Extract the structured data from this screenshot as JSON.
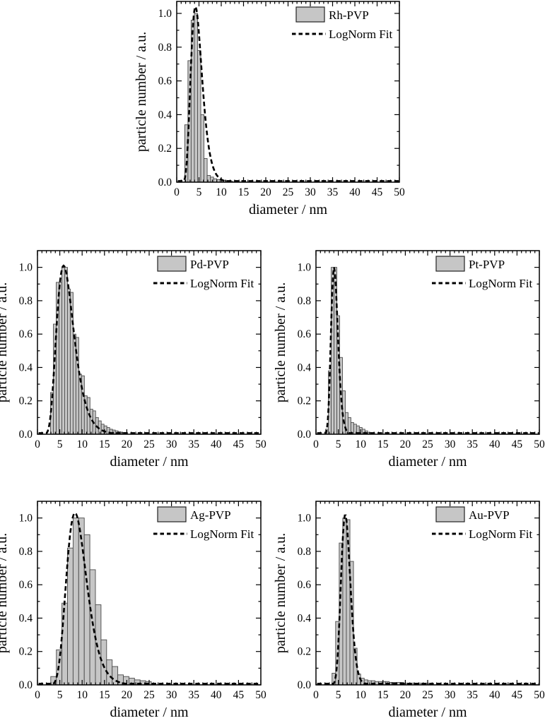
{
  "figure": {
    "background": "#ffffff",
    "xlabel": "diameter / nm",
    "ylabel": "particle number / a.u.",
    "legend_fit_label": "LogNorm Fit",
    "colors": {
      "bar_fill": "#c6c6c6",
      "bar_edge": "#4a4a4a",
      "fit_line": "#000000",
      "frame": "#000000",
      "text": "#000000"
    }
  },
  "chart_data": [
    {
      "id": "rh-pvp",
      "type": "bar",
      "legend_label": "Rh-PVP",
      "fit_label": "LogNorm Fit",
      "xlabel": "diameter / nm",
      "ylabel": "particle number / a.u.",
      "xlim": [
        0,
        50
      ],
      "ylim": [
        0,
        1.071
      ],
      "x_ticks": {
        "values": [
          0,
          5,
          10,
          15,
          20,
          25,
          30,
          35,
          40,
          45,
          50
        ],
        "labels": [
          "0",
          "5",
          "10",
          "15",
          "20",
          "25",
          "30",
          "35",
          "40",
          "45",
          "50"
        ],
        "minor_step": 1
      },
      "y_ticks": {
        "values": [
          0,
          0.2,
          0.4,
          0.6,
          0.8,
          1.0
        ],
        "labels": [
          "0.0",
          "0.2",
          "0.4",
          "0.6",
          "0.8",
          "1.0"
        ],
        "minor_step": 0.1
      },
      "bin_width": 0.72,
      "bin_centers": [
        2.16,
        2.88,
        3.6,
        4.32,
        5.04,
        5.76,
        6.48,
        7.2,
        7.92,
        8.64,
        9.36,
        10.08,
        10.8,
        11.52,
        12.24
      ],
      "bin_heights": [
        0.34,
        0.72,
        0.96,
        1.0,
        0.78,
        0.4,
        0.14,
        0.04,
        0.03,
        0.02,
        0.015,
        0.01,
        0.01,
        0.008,
        0.005
      ],
      "fit": {
        "type": "lognormal",
        "peak": 4.2,
        "sigma": 0.3,
        "amplitude": 1.04
      }
    },
    {
      "id": "pd-pvp",
      "type": "bar",
      "legend_label": "Pd-PVP",
      "fit_label": "LogNorm Fit",
      "xlabel": "diameter / nm",
      "ylabel": "particle number / a.u.",
      "xlim": [
        0,
        50
      ],
      "ylim": [
        0,
        1.1
      ],
      "x_ticks": {
        "values": [
          0,
          5,
          10,
          15,
          20,
          25,
          30,
          35,
          40,
          45,
          50
        ],
        "labels": [
          "0",
          "5",
          "10",
          "15",
          "20",
          "25",
          "30",
          "35",
          "40",
          "45",
          "50"
        ],
        "minor_step": 1
      },
      "y_ticks": {
        "values": [
          0,
          0.2,
          0.4,
          0.6,
          0.8,
          1.0
        ],
        "labels": [
          "0.0",
          "0.2",
          "0.4",
          "0.6",
          "0.8",
          "1.0"
        ],
        "minor_step": 0.1
      },
      "bin_width": 0.63,
      "bin_centers": [
        3.25,
        3.88,
        4.51,
        5.14,
        5.77,
        6.4,
        7.03,
        7.66,
        8.29,
        8.92,
        9.55,
        10.18,
        10.81,
        11.44,
        12.07,
        12.7,
        13.33,
        13.96,
        14.59,
        15.22,
        15.85,
        16.48,
        17.11,
        17.74,
        18.37,
        19.0,
        19.63
      ],
      "bin_heights": [
        0.25,
        0.66,
        0.91,
        0.91,
        1.0,
        1.0,
        0.87,
        0.85,
        0.6,
        0.58,
        0.36,
        0.35,
        0.23,
        0.22,
        0.15,
        0.14,
        0.1,
        0.08,
        0.06,
        0.05,
        0.04,
        0.03,
        0.025,
        0.02,
        0.015,
        0.01,
        0.01
      ],
      "fit": {
        "type": "lognormal",
        "peak": 5.85,
        "sigma": 0.33,
        "amplitude": 1.01
      }
    },
    {
      "id": "pt-pvp",
      "type": "bar",
      "legend_label": "Pt-PVP",
      "fit_label": "LogNorm Fit",
      "xlabel": "diameter / nm",
      "ylabel": "particle number / a.u.",
      "xlim": [
        0,
        50
      ],
      "ylim": [
        0,
        1.1
      ],
      "x_ticks": {
        "values": [
          0,
          5,
          10,
          15,
          20,
          25,
          30,
          35,
          40,
          45,
          50
        ],
        "labels": [
          "0",
          "5",
          "10",
          "15",
          "20",
          "25",
          "30",
          "35",
          "40",
          "45",
          "50"
        ],
        "minor_step": 1
      },
      "y_ticks": {
        "values": [
          0,
          0.2,
          0.4,
          0.6,
          0.8,
          1.0
        ],
        "labels": [
          "0.0",
          "0.2",
          "0.4",
          "0.6",
          "0.8",
          "1.0"
        ],
        "minor_step": 0.1
      },
      "bin_width": 0.63,
      "bin_centers": [
        2.46,
        3.09,
        3.72,
        4.35,
        4.98,
        5.61,
        6.24,
        6.87,
        7.5,
        8.13,
        8.76,
        9.39,
        10.02,
        10.65,
        11.28,
        11.91
      ],
      "bin_heights": [
        0.03,
        0.38,
        1.0,
        1.0,
        0.71,
        0.46,
        0.26,
        0.13,
        0.1,
        0.07,
        0.06,
        0.05,
        0.04,
        0.03,
        0.02,
        0.01
      ],
      "fit": {
        "type": "lognormal",
        "peak": 4.05,
        "sigma": 0.19,
        "amplitude": 1.0
      }
    },
    {
      "id": "ag-pvp",
      "type": "bar",
      "legend_label": "Ag-PVP",
      "fit_label": "LogNorm Fit",
      "xlabel": "diameter / nm",
      "ylabel": "particle number / a.u.",
      "xlim": [
        0,
        50
      ],
      "ylim": [
        0,
        1.1
      ],
      "x_ticks": {
        "values": [
          0,
          5,
          10,
          15,
          20,
          25,
          30,
          35,
          40,
          45,
          50
        ],
        "labels": [
          "0",
          "5",
          "10",
          "15",
          "20",
          "25",
          "30",
          "35",
          "40",
          "45",
          "50"
        ],
        "minor_step": 1
      },
      "y_ticks": {
        "values": [
          0,
          0.2,
          0.4,
          0.6,
          0.8,
          1.0
        ],
        "labels": [
          "0.0",
          "0.2",
          "0.4",
          "0.6",
          "0.8",
          "1.0"
        ],
        "minor_step": 0.1
      },
      "bin_width": 1.25,
      "bin_centers": [
        3.6,
        4.85,
        6.1,
        7.35,
        8.6,
        9.85,
        11.1,
        12.35,
        13.6,
        14.85,
        16.1,
        17.35,
        18.6,
        19.85,
        21.1,
        22.35,
        23.6,
        24.85
      ],
      "bin_heights": [
        0.05,
        0.21,
        0.49,
        0.82,
        1.0,
        1.0,
        0.9,
        0.69,
        0.48,
        0.27,
        0.15,
        0.11,
        0.06,
        0.05,
        0.04,
        0.03,
        0.025,
        0.02
      ],
      "fit": {
        "type": "lognormal",
        "peak": 8.4,
        "sigma": 0.27,
        "amplitude": 1.03
      }
    },
    {
      "id": "au-pvp",
      "type": "bar",
      "legend_label": "Au-PVP",
      "fit_label": "LogNorm Fit",
      "xlabel": "diameter / nm",
      "ylabel": "particle number / a.u.",
      "xlim": [
        0,
        50
      ],
      "ylim": [
        0,
        1.1
      ],
      "x_ticks": {
        "values": [
          0,
          5,
          10,
          15,
          20,
          25,
          30,
          35,
          40,
          45,
          50
        ],
        "labels": [
          "0",
          "5",
          "10",
          "15",
          "20",
          "25",
          "30",
          "35",
          "40",
          "45",
          "50"
        ],
        "minor_step": 1
      },
      "y_ticks": {
        "values": [
          0,
          0.2,
          0.4,
          0.6,
          0.8,
          1.0
        ],
        "labels": [
          "0.0",
          "0.2",
          "0.4",
          "0.6",
          "0.8",
          "1.0"
        ],
        "minor_step": 0.1
      },
      "bin_width": 0.8,
      "bin_centers": [
        4.0,
        4.8,
        5.6,
        6.4,
        7.2,
        8.0,
        8.8,
        9.6,
        10.4,
        11.2,
        12.0,
        12.8,
        13.6,
        14.4,
        15.2,
        16.0,
        16.8,
        17.6,
        18.4,
        19.2,
        20.0,
        20.8,
        21.6,
        22.4,
        23.2,
        24.0,
        24.8
      ],
      "bin_heights": [
        0.07,
        0.38,
        0.85,
        1.0,
        0.99,
        0.74,
        0.22,
        0.065,
        0.04,
        0.03,
        0.025,
        0.025,
        0.02,
        0.02,
        0.02,
        0.02,
        0.015,
        0.015,
        0.015,
        0.015,
        0.01,
        0.01,
        0.01,
        0.01,
        0.01,
        0.01,
        0.01
      ],
      "fit": {
        "type": "lognormal",
        "peak": 6.55,
        "sigma": 0.16,
        "amplitude": 1.02
      }
    }
  ]
}
